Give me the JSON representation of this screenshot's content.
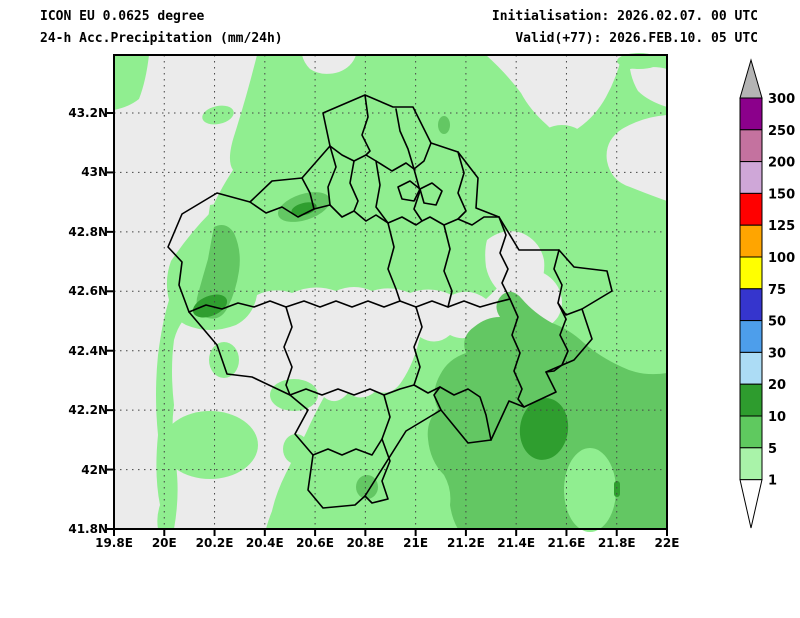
{
  "header": {
    "model_line": "ICON EU 0.0625 degree",
    "product_line": "24-h Acc.Precipitation (mm/24h)",
    "init_line": "Initialisation: 2026.02.07. 00 UTC",
    "valid_line": "Valid(+77): 2026.FEB.10. 05 UTC"
  },
  "axes": {
    "lat_labels": [
      "43.2N",
      "43N",
      "42.8N",
      "42.6N",
      "42.4N",
      "42.2N",
      "42N",
      "41.8N"
    ],
    "lon_labels": [
      "19.8E",
      "20E",
      "20.2E",
      "20.4E",
      "20.6E",
      "20.8E",
      "21E",
      "21.2E",
      "21.4E",
      "21.6E",
      "21.8E",
      "22E"
    ]
  },
  "colorbar": {
    "unit": "mm/24h",
    "tick_values": [
      "300",
      "250",
      "200",
      "150",
      "125",
      "100",
      "75",
      "50",
      "30",
      "20",
      "10",
      "5",
      "1"
    ],
    "segment_colors_top_to_bottom": [
      "#8B008B",
      "#C4729F",
      "#CFA7D8",
      "#FF0000",
      "#FFA500",
      "#FFFF00",
      "#3535CD",
      "#4D9EEB",
      "#ACDCF5",
      "#2E9C2E",
      "#5FC95F",
      "#A9F3A9"
    ],
    "overflow_color": "#B4B4B4",
    "underflow_color": "#FFFFFF"
  },
  "map": {
    "extent": {
      "lon_min": "19.8E",
      "lon_max": "22E",
      "lat_min": "41.8N",
      "lat_max": "43.4N"
    },
    "no_precip_color": "#EBEBEB",
    "precip_shades": [
      {
        "range": "1-5",
        "color": "#90EE90"
      },
      {
        "range": "5-10",
        "color": "#63C763"
      },
      {
        "range": "10-20",
        "color": "#2F9E2F"
      }
    ],
    "boundary_color": "#000000"
  }
}
